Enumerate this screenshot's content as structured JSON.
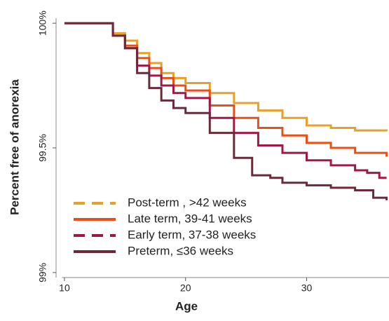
{
  "chart_data": {
    "type": "step",
    "xlabel": "Age",
    "ylabel": "Percent free of anorexia",
    "xlim": [
      9.8,
      36.8
    ],
    "ylim": [
      98.98,
      100.02
    ],
    "xticks": [
      10,
      20,
      30
    ],
    "yticks": [
      {
        "value": 99,
        "label": "99%"
      },
      {
        "value": 99.5,
        "label": "99.5%"
      },
      {
        "value": 100,
        "label": "100%"
      }
    ],
    "series": [
      {
        "name": "Post-term , >42 weeks",
        "color": "#e8a02a",
        "dashed": true,
        "x": [
          10,
          12,
          14,
          15,
          16,
          17,
          18,
          19,
          20,
          22,
          24,
          26,
          28,
          30,
          32,
          34,
          36.6
        ],
        "values": [
          100,
          100,
          99.96,
          99.93,
          99.88,
          99.84,
          99.8,
          99.78,
          99.76,
          99.72,
          99.68,
          99.65,
          99.62,
          99.59,
          99.58,
          99.57,
          99.567
        ]
      },
      {
        "name": "Late term, 39-41 weeks",
        "color": "#e8501a",
        "dashed": false,
        "x": [
          10,
          12,
          14,
          15,
          16,
          17,
          18,
          19,
          20,
          22,
          24,
          26,
          28,
          30,
          32,
          34,
          36.6
        ],
        "values": [
          100,
          100,
          99.95,
          99.91,
          99.86,
          99.82,
          99.78,
          99.75,
          99.73,
          99.67,
          99.62,
          99.58,
          99.55,
          99.52,
          99.5,
          99.48,
          99.465
        ]
      },
      {
        "name": "Early term, 37-38 weeks",
        "color": "#a01848",
        "dashed": true,
        "x": [
          10,
          12,
          14,
          15,
          16,
          17,
          18,
          19,
          20,
          22,
          24,
          26,
          28,
          30,
          32,
          34,
          35,
          36,
          36.6
        ],
        "values": [
          100,
          100,
          99.95,
          99.9,
          99.83,
          99.79,
          99.75,
          99.72,
          99.7,
          99.62,
          99.56,
          99.51,
          99.48,
          99.45,
          99.43,
          99.41,
          99.4,
          99.38,
          99.38
        ]
      },
      {
        "name": "Preterm, ≤36 weeks",
        "color": "#6a2a3a",
        "dashed": false,
        "x": [
          10,
          12,
          14,
          15,
          16,
          17,
          18,
          19,
          20,
          22,
          24,
          25.5,
          27,
          28,
          30,
          32,
          34,
          35.5,
          36.6
        ],
        "values": [
          100,
          100,
          99.95,
          99.9,
          99.8,
          99.74,
          99.69,
          99.66,
          99.64,
          99.56,
          99.46,
          99.39,
          99.38,
          99.36,
          99.35,
          99.34,
          99.33,
          99.3,
          99.29
        ]
      }
    ]
  }
}
